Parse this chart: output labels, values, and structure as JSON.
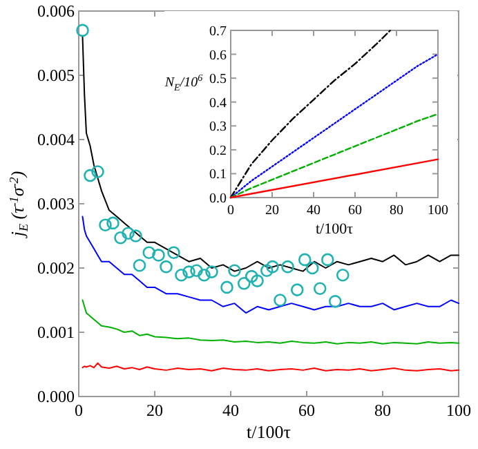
{
  "chart_data": [
    {
      "type": "line",
      "xlabel": "t/100τ",
      "ylabel": "j$_{E}$ (τ$^{-1}$σ$^{-2}$)",
      "xlim": [
        0,
        100
      ],
      "ylim": [
        0,
        0.006
      ],
      "xticks": [
        0,
        20,
        40,
        60,
        80,
        100
      ],
      "yticks": [
        {
          "value": 0,
          "label": "0.000"
        },
        {
          "value": 0.001,
          "label": "0.001"
        },
        {
          "value": 0.002,
          "label": "0.002"
        },
        {
          "value": 0.003,
          "label": "0.003"
        },
        {
          "value": 0.004,
          "label": "0.004"
        },
        {
          "value": 0.005,
          "label": "0.005"
        },
        {
          "value": 0.006,
          "label": "0.006"
        }
      ],
      "grid": false,
      "series": [
        {
          "color": "#000000",
          "x": [
            1,
            1.5,
            2,
            3,
            4,
            5,
            6,
            8,
            10,
            12,
            14,
            16,
            18,
            20,
            23,
            26,
            29,
            32,
            35,
            38,
            41,
            44,
            47,
            50,
            53,
            56,
            59,
            62,
            65,
            68,
            71,
            74,
            77,
            80,
            83,
            86,
            89,
            92,
            95,
            98,
            100
          ],
          "values": [
            0.0056,
            0.0047,
            0.0041,
            0.0039,
            0.0036,
            0.0034,
            0.0032,
            0.0029,
            0.0028,
            0.0027,
            0.0026,
            0.0025,
            0.0024,
            0.0024,
            0.0023,
            0.0022,
            0.0021,
            0.00215,
            0.002,
            0.00205,
            0.00195,
            0.002,
            0.0021,
            0.002,
            0.00205,
            0.002,
            0.00195,
            0.0021,
            0.002,
            0.0021,
            0.00205,
            0.0021,
            0.00215,
            0.0021,
            0.0022,
            0.00205,
            0.0021,
            0.0022,
            0.0021,
            0.0022,
            0.0022
          ]
        },
        {
          "color": "#0000ff",
          "x": [
            1,
            1.5,
            2,
            3,
            4,
            5,
            6,
            8,
            10,
            12,
            14,
            16,
            18,
            20,
            23,
            26,
            29,
            32,
            35,
            38,
            41,
            44,
            47,
            50,
            53,
            56,
            59,
            62,
            65,
            68,
            71,
            74,
            77,
            80,
            83,
            86,
            89,
            92,
            95,
            98,
            100
          ],
          "values": [
            0.0028,
            0.0026,
            0.0025,
            0.0024,
            0.0023,
            0.0022,
            0.0021,
            0.0021,
            0.002,
            0.0019,
            0.0019,
            0.0018,
            0.0017,
            0.0017,
            0.0016,
            0.0016,
            0.00155,
            0.0015,
            0.0015,
            0.0014,
            0.00145,
            0.0013,
            0.0014,
            0.00135,
            0.0014,
            0.00145,
            0.0014,
            0.00135,
            0.0014,
            0.0014,
            0.00145,
            0.0014,
            0.0014,
            0.00145,
            0.00135,
            0.0014,
            0.00145,
            0.0014,
            0.0014,
            0.0015,
            0.00145
          ]
        },
        {
          "color": "#00b000",
          "x": [
            1,
            1.5,
            2,
            3,
            4,
            5,
            6,
            8,
            10,
            12,
            14,
            16,
            18,
            20,
            23,
            26,
            29,
            32,
            35,
            38,
            41,
            44,
            47,
            50,
            53,
            56,
            59,
            62,
            65,
            68,
            71,
            74,
            77,
            80,
            83,
            86,
            89,
            92,
            95,
            98,
            100
          ],
          "values": [
            0.0015,
            0.0014,
            0.0013,
            0.00125,
            0.0012,
            0.00115,
            0.0011,
            0.00108,
            0.00105,
            0.001,
            0.00102,
            0.00095,
            0.00097,
            0.00093,
            0.00092,
            0.0009,
            0.00091,
            0.00088,
            0.00087,
            0.00088,
            0.00085,
            0.00086,
            0.00084,
            0.00085,
            0.00083,
            0.00086,
            0.00084,
            0.00083,
            0.00085,
            0.00082,
            0.00084,
            0.00083,
            0.00085,
            0.00082,
            0.00084,
            0.00083,
            0.00082,
            0.00085,
            0.00083,
            0.00084,
            0.00083
          ]
        },
        {
          "color": "#ff0000",
          "x": [
            1,
            1.5,
            2,
            3,
            4,
            5,
            6,
            8,
            10,
            12,
            14,
            16,
            18,
            20,
            23,
            26,
            29,
            32,
            35,
            38,
            41,
            44,
            47,
            50,
            53,
            56,
            59,
            62,
            65,
            68,
            71,
            74,
            77,
            80,
            83,
            86,
            89,
            92,
            95,
            98,
            100
          ],
          "values": [
            0.00045,
            0.00047,
            0.00046,
            0.00048,
            0.00045,
            0.00052,
            0.00046,
            0.00044,
            0.00047,
            0.00043,
            0.00045,
            0.00042,
            0.00046,
            0.00043,
            0.00041,
            0.00044,
            0.00042,
            0.00043,
            0.0004,
            0.00044,
            0.00042,
            0.00041,
            0.00043,
            0.0004,
            0.00042,
            0.00043,
            0.00041,
            0.00044,
            0.0004,
            0.00042,
            0.00041,
            0.00043,
            0.0004,
            0.00042,
            0.00044,
            0.00041,
            0.0004,
            0.00042,
            0.00043,
            0.0004,
            0.00041
          ]
        },
        {
          "type": "scatter",
          "marker": "circle",
          "color": "#20b2b2",
          "x": [
            1,
            3,
            5,
            7,
            9,
            11,
            13,
            15,
            16,
            18.5,
            21,
            23,
            25,
            27,
            29,
            31,
            33,
            35,
            39,
            41,
            43.5,
            45.5,
            47,
            49.5,
            51,
            53,
            55,
            57.5,
            59.5,
            61.5,
            63.5,
            65.5,
            67.5,
            69.5
          ],
          "values": [
            0.0057,
            0.00344,
            0.0035,
            0.00267,
            0.0027,
            0.00247,
            0.00254,
            0.0025,
            0.00204,
            0.00224,
            0.0022,
            0.00202,
            0.00224,
            0.00189,
            0.00194,
            0.00196,
            0.00189,
            0.00194,
            0.0017,
            0.00196,
            0.00176,
            0.00187,
            0.0018,
            0.00196,
            0.00202,
            0.0015,
            0.00202,
            0.00166,
            0.00213,
            0.002,
            0.00168,
            0.00213,
            0.00148,
            0.00189
          ]
        }
      ]
    },
    {
      "type": "line",
      "xlabel": "t/100τ",
      "ylabel": "N$_{E}$/10$^{6}$",
      "xlim": [
        0,
        100
      ],
      "ylim": [
        0,
        0.7
      ],
      "xticks": [
        0,
        20,
        40,
        60,
        80,
        100
      ],
      "yticks": [
        {
          "value": 0,
          "label": "0.0"
        },
        {
          "value": 0.1,
          "label": "0.1"
        },
        {
          "value": 0.2,
          "label": "0.2"
        },
        {
          "value": 0.3,
          "label": "0.3"
        },
        {
          "value": 0.4,
          "label": "0.4"
        },
        {
          "value": 0.5,
          "label": "0.5"
        },
        {
          "value": 0.6,
          "label": "0.6"
        },
        {
          "value": 0.7,
          "label": "0.7"
        }
      ],
      "grid": false,
      "series": [
        {
          "color": "#000000",
          "line_style": "dashdot",
          "x": [
            0,
            10,
            20,
            30,
            40,
            50,
            60,
            70,
            77
          ],
          "values": [
            0,
            0.14,
            0.24,
            0.33,
            0.41,
            0.49,
            0.56,
            0.64,
            0.7
          ]
        },
        {
          "color": "#0000ff",
          "line_style": "dotted",
          "x": [
            0,
            10,
            20,
            30,
            40,
            50,
            60,
            70,
            80,
            90,
            100
          ],
          "values": [
            0,
            0.07,
            0.13,
            0.19,
            0.25,
            0.31,
            0.37,
            0.43,
            0.49,
            0.55,
            0.6
          ]
        },
        {
          "color": "#00b000",
          "line_style": "dashed",
          "x": [
            0,
            10,
            20,
            30,
            40,
            50,
            60,
            70,
            80,
            90,
            100
          ],
          "values": [
            0,
            0.04,
            0.075,
            0.11,
            0.145,
            0.18,
            0.215,
            0.25,
            0.285,
            0.32,
            0.35
          ]
        },
        {
          "color": "#ff0000",
          "line_style": "solid",
          "x": [
            0,
            100
          ],
          "values": [
            0,
            0.16
          ]
        }
      ]
    }
  ]
}
